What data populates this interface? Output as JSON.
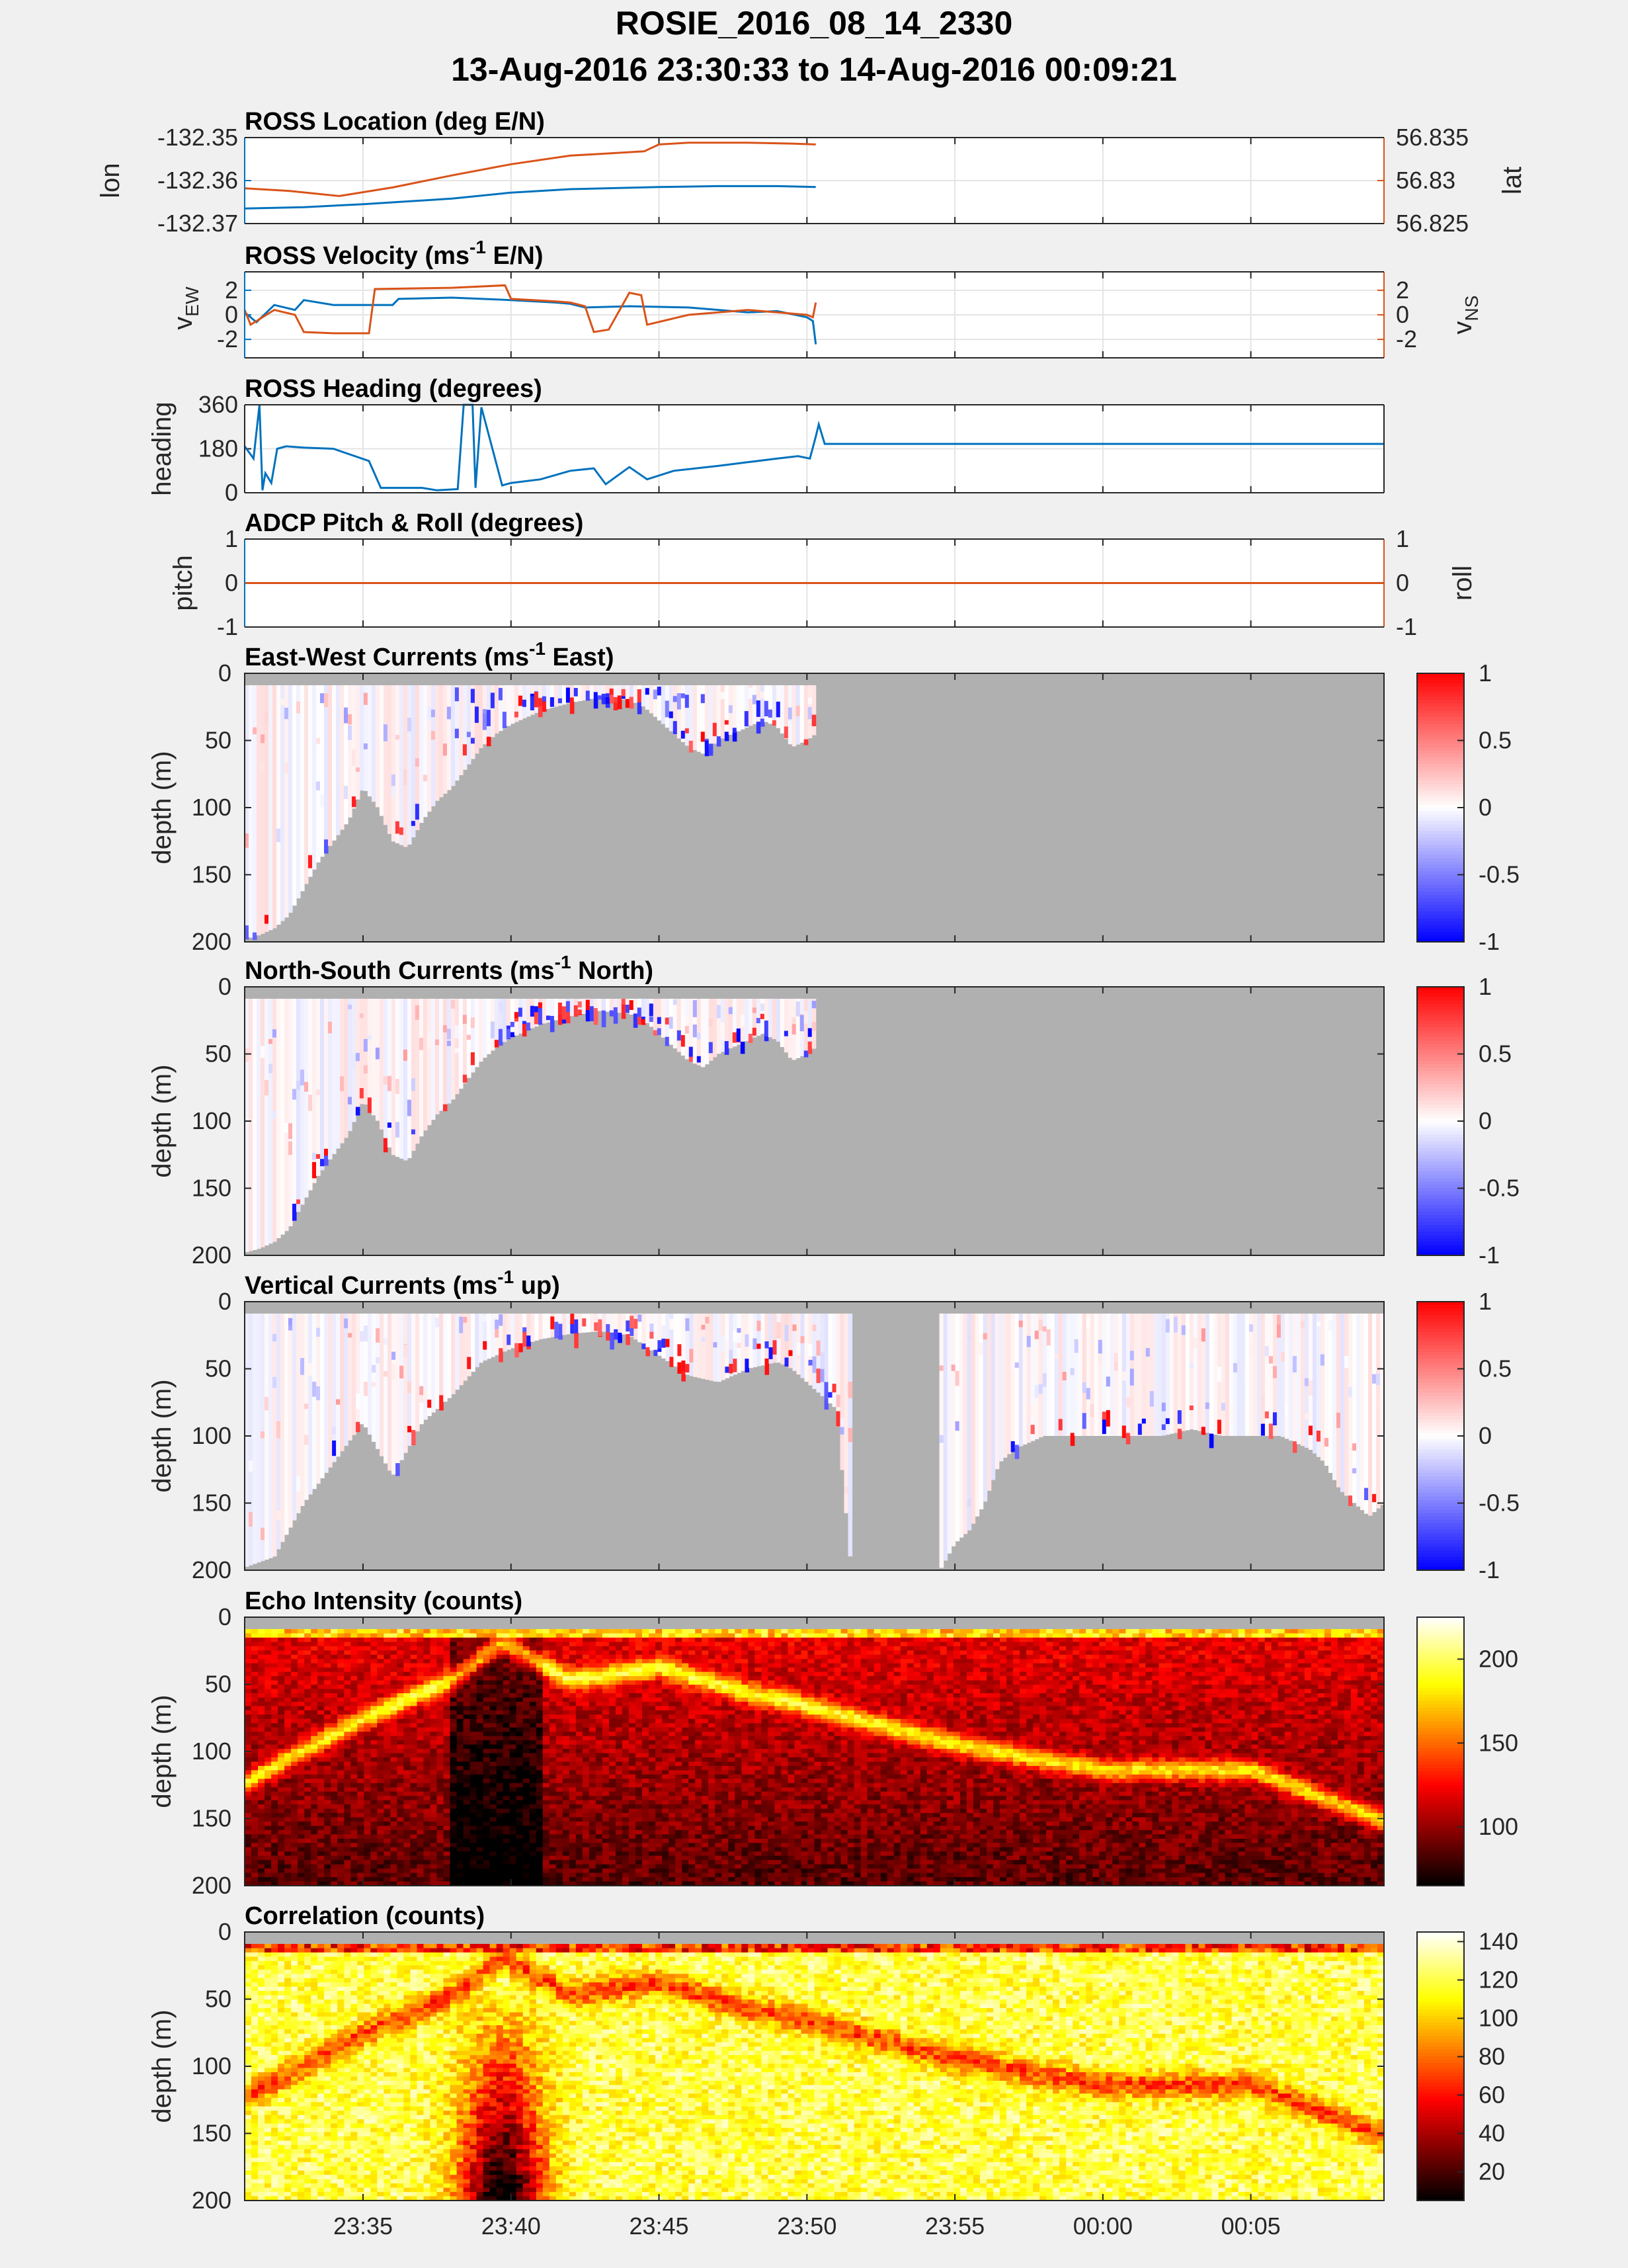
{
  "figure": {
    "title_line1": "ROSIE_2016_08_14_2330",
    "title_line2": "13-Aug-2016 23:30:33 to 14-Aug-2016 00:09:21"
  },
  "colors": {
    "blue": "#0072bd",
    "orange": "#d95319",
    "mask_gray": "#b0b0b0"
  },
  "time_axis": {
    "range_minutes": [
      -29,
      9.5
    ],
    "ticks": [
      {
        "t": -25,
        "label": "23:35"
      },
      {
        "t": -20,
        "label": "23:40"
      },
      {
        "t": -15,
        "label": "23:45"
      },
      {
        "t": -10,
        "label": "23:50"
      },
      {
        "t": -5,
        "label": "23:55"
      },
      {
        "t": 0,
        "label": "00:00"
      },
      {
        "t": 5,
        "label": "00:05"
      }
    ]
  },
  "chart_data": [
    {
      "id": "location",
      "type": "line",
      "title": "ROSS Location (deg E/N)",
      "ylabel_left": "lon",
      "ylabel_right": "lat",
      "ylim_left": [
        -132.37,
        -132.35
      ],
      "ylim_right": [
        56.825,
        56.835
      ],
      "yticks_left": [
        {
          "v": -132.35,
          "label": "-132.35"
        },
        {
          "v": -132.36,
          "label": "-132.36"
        },
        {
          "v": -132.37,
          "label": "-132.37"
        }
      ],
      "yticks_right": [
        {
          "v": 56.835,
          "label": "56.835"
        },
        {
          "v": 56.83,
          "label": "56.83"
        },
        {
          "v": 56.825,
          "label": "56.825"
        }
      ],
      "series": [
        {
          "name": "lon",
          "axis": "left",
          "color": "blue",
          "x": [
            -29,
            -27,
            -25,
            -22,
            -20,
            -18,
            -15,
            -13,
            -11,
            -9.7
          ],
          "y": [
            -132.3665,
            -132.3662,
            -132.3655,
            -132.3642,
            -132.3628,
            -132.362,
            -132.3615,
            -132.3613,
            -132.3613,
            -132.3615
          ]
        },
        {
          "name": "lat",
          "axis": "right",
          "color": "orange",
          "x": [
            -29,
            -27.5,
            -25.8,
            -24,
            -22,
            -20,
            -18,
            -17,
            -15.5,
            -15,
            -14,
            -12,
            -10.5,
            -9.7
          ],
          "y": [
            56.8291,
            56.8288,
            56.8282,
            56.8292,
            56.8306,
            56.8319,
            56.8329,
            56.8331,
            56.8334,
            56.8342,
            56.8344,
            56.8344,
            56.8343,
            56.8342
          ]
        }
      ]
    },
    {
      "id": "velocity",
      "type": "line",
      "title_main": "ROSS Velocity (ms",
      "title_sup": "-1",
      "title_end": " E/N)",
      "ylabel_left": "v",
      "ylabel_left_sub": "EW",
      "ylabel_right": "v",
      "ylabel_right_sub": "NS",
      "ylim_left": [
        -3.5,
        3.5
      ],
      "ylim_right": [
        -3.5,
        3.5
      ],
      "yticks_left": [
        {
          "v": 2,
          "label": "2"
        },
        {
          "v": 0,
          "label": "0"
        },
        {
          "v": -2,
          "label": "-2"
        }
      ],
      "yticks_right": [
        {
          "v": 2,
          "label": "2"
        },
        {
          "v": 0,
          "label": "0"
        },
        {
          "v": -2,
          "label": "-2"
        }
      ],
      "series": [
        {
          "name": "v_EW",
          "axis": "left",
          "color": "blue",
          "x": [
            -29,
            -28.6,
            -28,
            -27.3,
            -27,
            -26,
            -25,
            -24,
            -23.8,
            -22,
            -20,
            -18.5,
            -18,
            -17.5,
            -16,
            -14,
            -12,
            -11,
            -10,
            -9.8,
            -9.7
          ],
          "y": [
            0.2,
            -0.6,
            0.8,
            0.4,
            1.2,
            0.8,
            0.8,
            0.8,
            1.3,
            1.4,
            1.2,
            1.0,
            0.9,
            0.6,
            0.7,
            0.6,
            0.2,
            0.3,
            -0.2,
            -0.5,
            -2.4
          ]
        },
        {
          "name": "v_NS",
          "axis": "right",
          "color": "orange",
          "x": [
            -29,
            -28.8,
            -28,
            -27.3,
            -27,
            -26,
            -24.8,
            -24.6,
            -22,
            -20.2,
            -20,
            -18.5,
            -18,
            -17.5,
            -17.2,
            -16.7,
            -16,
            -15.6,
            -15.4,
            -14,
            -12,
            -10,
            -9.8,
            -9.7
          ],
          "y": [
            0.4,
            -0.8,
            0.4,
            0.0,
            -1.4,
            -1.5,
            -1.5,
            2.1,
            2.2,
            2.4,
            1.3,
            1.1,
            1.0,
            0.7,
            -1.4,
            -1.2,
            1.8,
            1.6,
            -0.8,
            0.0,
            0.4,
            0.0,
            -0.2,
            1.0
          ]
        }
      ]
    },
    {
      "id": "heading",
      "type": "line",
      "title": "ROSS Heading (degrees)",
      "ylabel_left": "heading",
      "ylim_left": [
        0,
        360
      ],
      "yticks_left": [
        {
          "v": 360,
          "label": "360"
        },
        {
          "v": 180,
          "label": "180"
        },
        {
          "v": 0,
          "label": "0"
        }
      ],
      "series": [
        {
          "name": "heading",
          "axis": "left",
          "color": "blue",
          "x": [
            -29,
            -28.7,
            -28.5,
            -28.4,
            -28.3,
            -28.1,
            -27.9,
            -27.6,
            -27,
            -26,
            -24.8,
            -24.4,
            -23,
            -22.5,
            -21.8,
            -21.6,
            -21.3,
            -21.2,
            -21.0,
            -20.3,
            -20,
            -19,
            -18,
            -17.2,
            -16.8,
            -16,
            -15.4,
            -14.5,
            -13,
            -12,
            -11,
            -10.3,
            -9.9,
            -9.7,
            -9.6,
            -9.4,
            -9,
            -5,
            0,
            5,
            9.5
          ],
          "y": [
            190,
            140,
            360,
            10,
            80,
            40,
            180,
            190,
            185,
            180,
            130,
            20,
            20,
            10,
            15,
            360,
            360,
            20,
            350,
            30,
            40,
            55,
            90,
            100,
            35,
            105,
            55,
            90,
            110,
            125,
            140,
            150,
            140,
            230,
            280,
            200,
            200,
            200,
            200,
            200,
            200
          ]
        }
      ]
    },
    {
      "id": "pitchroll",
      "type": "line",
      "title": "ADCP Pitch & Roll (degrees)",
      "ylabel_left": "pitch",
      "ylabel_right": "roll",
      "ylim_left": [
        -1,
        1
      ],
      "ylim_right": [
        -1,
        1
      ],
      "yticks_left": [
        {
          "v": 1,
          "label": "1"
        },
        {
          "v": 0,
          "label": "0"
        },
        {
          "v": -1,
          "label": "-1"
        }
      ],
      "yticks_right": [
        {
          "v": 1,
          "label": "1"
        },
        {
          "v": 0,
          "label": "0"
        },
        {
          "v": -1,
          "label": "-1"
        }
      ],
      "series": [
        {
          "name": "pitch",
          "axis": "left",
          "color": "blue",
          "x": [
            -29,
            9.5
          ],
          "y": [
            0,
            0
          ]
        },
        {
          "name": "roll",
          "axis": "right",
          "color": "orange",
          "x": [
            -29,
            9.5
          ],
          "y": [
            0,
            0
          ]
        }
      ]
    },
    {
      "id": "ew",
      "type": "heatmap",
      "title_main": "East-West Currents (ms",
      "title_sup": "-1",
      "title_end": " East)",
      "ylabel": "depth (m)",
      "ylim": [
        200,
        0
      ],
      "yticks": [
        0,
        50,
        100,
        150,
        200
      ],
      "colormap": "bwr",
      "clim": [
        -1,
        1
      ],
      "cbar_ticks": [
        {
          "v": 1,
          "label": "1"
        },
        {
          "v": 0.5,
          "label": "0.5"
        },
        {
          "v": 0,
          "label": "0"
        },
        {
          "v": -0.5,
          "label": "-0.5"
        },
        {
          "v": -1,
          "label": "-1"
        }
      ],
      "data_window_minutes": [
        -29,
        -9.7
      ],
      "bottom_profile": {
        "t": [
          -29,
          -28.5,
          -28,
          -27.5,
          -27,
          -26.5,
          -25.5,
          -25,
          -24.5,
          -24,
          -23.5,
          -23,
          -22.5,
          -22,
          -21.5,
          -21,
          -20.5,
          -20,
          -19.5,
          -19,
          -18.5,
          -18,
          -17,
          -16,
          -15.5,
          -15,
          -14.5,
          -14,
          -13.5,
          -13,
          -12.5,
          -12,
          -11.5,
          -11,
          -10.5,
          -10,
          -9.7
        ],
        "depth": [
          198,
          195,
          190,
          180,
          160,
          140,
          110,
          85,
          100,
          125,
          130,
          110,
          95,
          85,
          70,
          55,
          45,
          38,
          33,
          28,
          25,
          22,
          18,
          20,
          25,
          35,
          45,
          55,
          60,
          50,
          45,
          40,
          35,
          40,
          55,
          50,
          45
        ]
      }
    },
    {
      "id": "ns",
      "type": "heatmap",
      "title_main": "North-South Currents (ms",
      "title_sup": "-1",
      "title_end": " North)",
      "ylabel": "depth (m)",
      "ylim": [
        200,
        0
      ],
      "yticks": [
        0,
        50,
        100,
        150,
        200
      ],
      "colormap": "bwr",
      "clim": [
        -1,
        1
      ],
      "cbar_ticks": [
        {
          "v": 1,
          "label": "1"
        },
        {
          "v": 0.5,
          "label": "0.5"
        },
        {
          "v": 0,
          "label": "0"
        },
        {
          "v": -0.5,
          "label": "-0.5"
        },
        {
          "v": -1,
          "label": "-1"
        }
      ],
      "data_window_minutes": [
        -29,
        -9.7
      ],
      "bottom_profile": {
        "t": [
          -29,
          -28.5,
          -28,
          -27.5,
          -27,
          -26.5,
          -25.5,
          -25,
          -24.5,
          -24,
          -23.5,
          -23,
          -22.5,
          -22,
          -21.5,
          -21,
          -20.5,
          -20,
          -19.5,
          -19,
          -18.5,
          -18,
          -17,
          -16,
          -15.5,
          -15,
          -14.5,
          -14,
          -13.5,
          -13,
          -12.5,
          -12,
          -11.5,
          -11,
          -10.5,
          -10,
          -9.7
        ],
        "depth": [
          198,
          195,
          190,
          180,
          160,
          140,
          110,
          85,
          100,
          125,
          130,
          110,
          95,
          85,
          70,
          55,
          45,
          38,
          33,
          28,
          25,
          22,
          18,
          20,
          25,
          35,
          45,
          55,
          60,
          50,
          45,
          40,
          35,
          40,
          55,
          50,
          45
        ]
      }
    },
    {
      "id": "vert",
      "type": "heatmap",
      "title_main": "Vertical Currents (ms",
      "title_sup": "-1",
      "title_end": " up)",
      "ylabel": "depth (m)",
      "ylim": [
        200,
        0
      ],
      "yticks": [
        0,
        50,
        100,
        150,
        200
      ],
      "colormap": "bwr",
      "clim": [
        -1,
        1
      ],
      "cbar_ticks": [
        {
          "v": 1,
          "label": "1"
        },
        {
          "v": 0.5,
          "label": "0.5"
        },
        {
          "v": 0,
          "label": "0"
        },
        {
          "v": -0.5,
          "label": "-0.5"
        },
        {
          "v": -1,
          "label": "-1"
        }
      ],
      "data_window_minutes": [
        -29,
        9.5
      ],
      "bottom_profile": {
        "t": [
          -29,
          -28,
          -27,
          -26,
          -25,
          -24.5,
          -24,
          -23.5,
          -23,
          -22,
          -21,
          -20,
          -19,
          -18,
          -17,
          -16,
          -15,
          -14,
          -13,
          -12,
          -11,
          -10.5,
          -10,
          -9.5,
          -9,
          -8.5,
          -7.5,
          -5.5,
          -5,
          -4.5,
          -4,
          -3.5,
          -3,
          -2.5,
          -2,
          -1,
          0,
          1,
          2,
          3,
          4,
          5,
          6,
          7,
          7.5,
          8,
          8.5,
          9,
          9.5
        ],
        "depth": [
          198,
          190,
          150,
          120,
          90,
          110,
          130,
          110,
          90,
          70,
          45,
          35,
          28,
          24,
          22,
          25,
          40,
          55,
          60,
          50,
          45,
          50,
          60,
          70,
          80,
          200,
          200,
          200,
          180,
          170,
          150,
          120,
          110,
          105,
          100,
          100,
          100,
          100,
          100,
          95,
          100,
          100,
          100,
          110,
          120,
          140,
          150,
          160,
          150
        ]
      },
      "gap_minutes": [
        -8.5,
        -5.5
      ]
    },
    {
      "id": "echo",
      "type": "heatmap",
      "title": "Echo Intensity (counts)",
      "ylabel": "depth (m)",
      "ylim": [
        200,
        0
      ],
      "yticks": [
        0,
        50,
        100,
        150,
        200
      ],
      "colormap": "hot",
      "clim": [
        65,
        225
      ],
      "cbar_ticks": [
        {
          "v": 200,
          "label": "200"
        },
        {
          "v": 150,
          "label": "150"
        },
        {
          "v": 100,
          "label": "100"
        }
      ],
      "data_window_minutes": [
        -29,
        9.5
      ]
    },
    {
      "id": "corr",
      "type": "heatmap",
      "title": "Correlation (counts)",
      "ylabel": "depth (m)",
      "ylim": [
        200,
        0
      ],
      "yticks": [
        0,
        50,
        100,
        150,
        200
      ],
      "colormap": "hot",
      "clim": [
        5,
        145
      ],
      "cbar_ticks": [
        {
          "v": 140,
          "label": "140"
        },
        {
          "v": 120,
          "label": "120"
        },
        {
          "v": 100,
          "label": "100"
        },
        {
          "v": 80,
          "label": "80"
        },
        {
          "v": 60,
          "label": "60"
        },
        {
          "v": 40,
          "label": "40"
        },
        {
          "v": 20,
          "label": "20"
        }
      ],
      "data_window_minutes": [
        -29,
        9.5
      ]
    }
  ]
}
